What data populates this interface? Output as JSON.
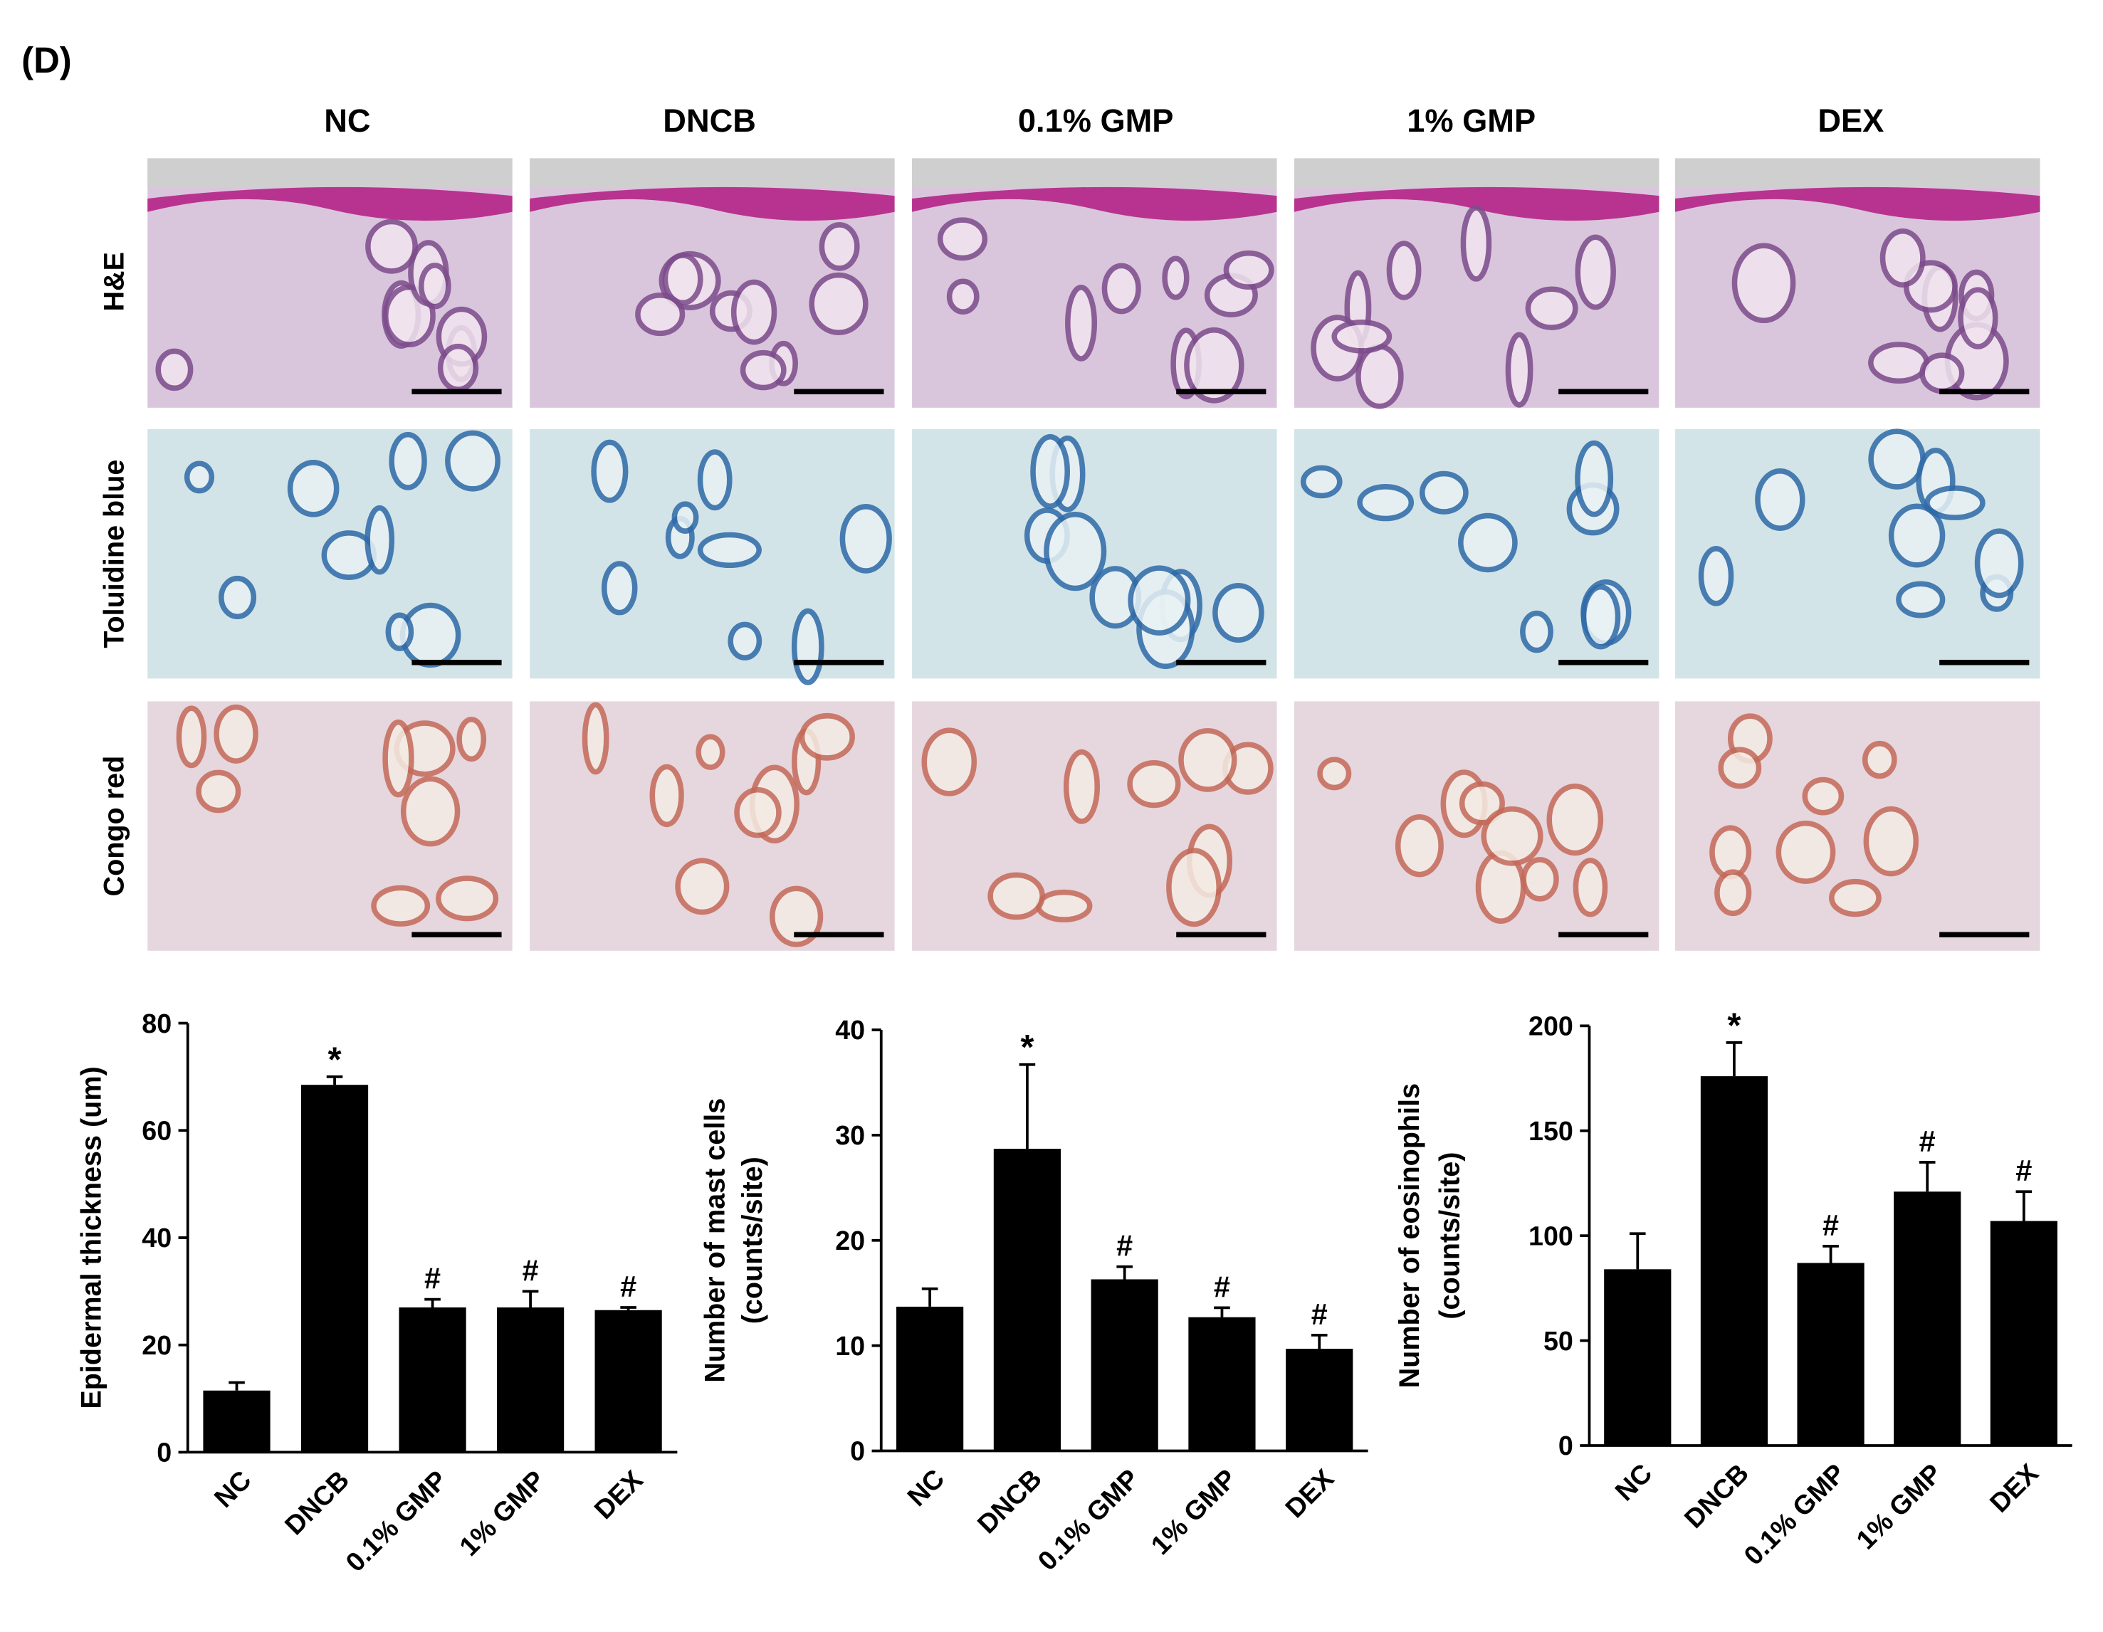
{
  "panel_label": "(D)",
  "columns": [
    "NC",
    "DNCB",
    "0.1% GMP",
    "1% GMP",
    "DEX"
  ],
  "rows": [
    "H&E",
    "Toluidine blue",
    "Congo red"
  ],
  "chart_data": [
    {
      "type": "bar",
      "ylabel": "Epidermal thickness (um)",
      "categories": [
        "NC",
        "DNCB",
        "0.1% GMP",
        "1% GMP",
        "DEX"
      ],
      "values": [
        11.5,
        68.5,
        27,
        27,
        26.5
      ],
      "errors": [
        1.5,
        1.5,
        1.5,
        3,
        0.5
      ],
      "annotations": [
        null,
        "*",
        "#",
        "#",
        "#"
      ],
      "color": "#000000",
      "ylim": [
        0,
        80
      ],
      "yticks": [
        0,
        20,
        40,
        60,
        80
      ]
    },
    {
      "type": "bar",
      "ylabel": [
        "Number of mast cells",
        "(counts/site)"
      ],
      "categories": [
        "NC",
        "DNCB",
        "0.1% GMP",
        "1% GMP",
        "DEX"
      ],
      "values": [
        13.7,
        28.7,
        16.3,
        12.7,
        9.7
      ],
      "errors": [
        1.7,
        8,
        1.2,
        0.9,
        1.3
      ],
      "annotations": [
        null,
        "*",
        "#",
        "#",
        "#"
      ],
      "color": "#000000",
      "ylim": [
        0,
        40
      ],
      "yticks": [
        0,
        10,
        20,
        30,
        40
      ]
    },
    {
      "type": "bar",
      "ylabel": [
        "Number of eosinophils",
        "(counts/site)"
      ],
      "categories": [
        "NC",
        "DNCB",
        "0.1% GMP",
        "1% GMP",
        "DEX"
      ],
      "values": [
        84,
        176,
        87,
        121,
        107
      ],
      "errors": [
        17,
        16,
        8,
        14,
        14
      ],
      "annotations": [
        null,
        "*",
        "#",
        "#",
        "#"
      ],
      "color": "#000000",
      "ylim": [
        0,
        200
      ],
      "yticks": [
        0,
        50,
        100,
        150,
        200
      ]
    }
  ]
}
